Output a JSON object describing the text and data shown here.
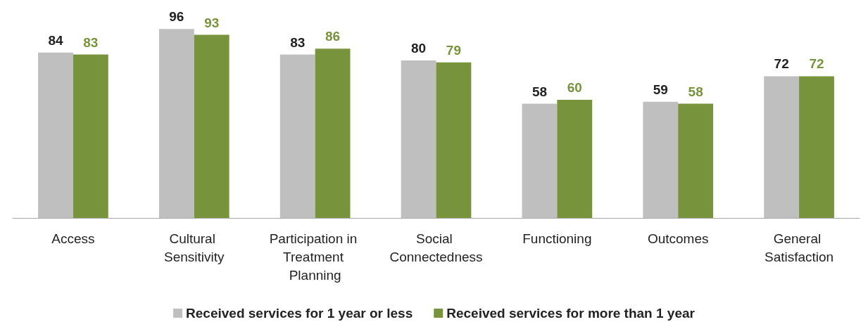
{
  "chart_data": {
    "type": "bar",
    "categories": [
      "Access",
      "Cultural Sensitivity",
      "Participation in Treatment Planning",
      "Social Connectedness",
      "Functioning",
      "Outcomes",
      "General Satisfaction"
    ],
    "series": [
      {
        "name": "Received services for 1 year or less",
        "color": "#bfbfbf",
        "values": [
          84,
          96,
          83,
          80,
          58,
          59,
          72
        ]
      },
      {
        "name": "Received services for more than 1 year",
        "color": "#77933c",
        "values": [
          83,
          93,
          86,
          79,
          60,
          58,
          72
        ]
      }
    ],
    "data_labels": true,
    "legend": "bottom"
  }
}
